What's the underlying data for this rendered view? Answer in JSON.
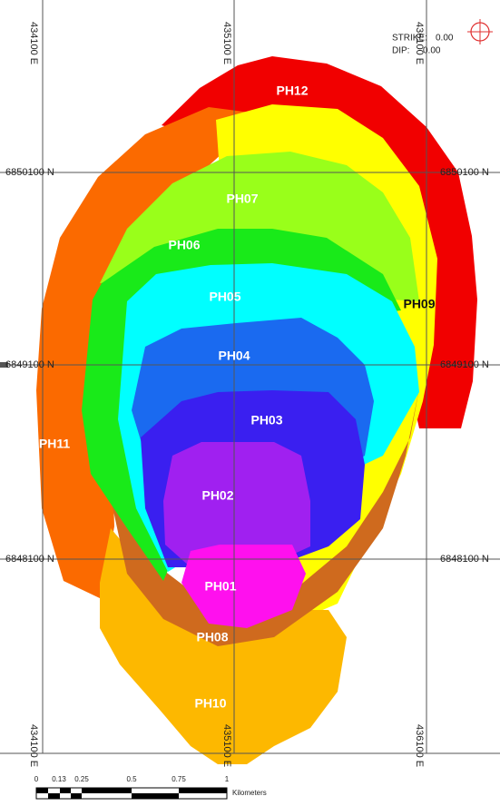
{
  "grid_labels": {
    "top": [
      "434100 E",
      "435100 E",
      "436100 E"
    ],
    "bottom": [
      "434100 E",
      "435100 E",
      "436100 E"
    ],
    "left": [
      "6850100 N",
      "6849100 N",
      "6848100 N"
    ],
    "right": [
      "6850100 N",
      "6849100 N",
      "6848100 N"
    ]
  },
  "orientation": {
    "strike_label": "STRIKE:",
    "strike": "0.00",
    "dip_label": "DIP:",
    "dip": "0.00"
  },
  "phases": [
    "PH12",
    "PH11",
    "PH09",
    "PH10",
    "PH08",
    "PH07",
    "PH06",
    "PH05",
    "PH04",
    "PH03",
    "PH02",
    "PH01"
  ],
  "scale_bar": {
    "ticks": [
      "0",
      "0.13",
      "0.25",
      "0.5",
      "0.75",
      "1"
    ],
    "unit": "Kilometers"
  }
}
